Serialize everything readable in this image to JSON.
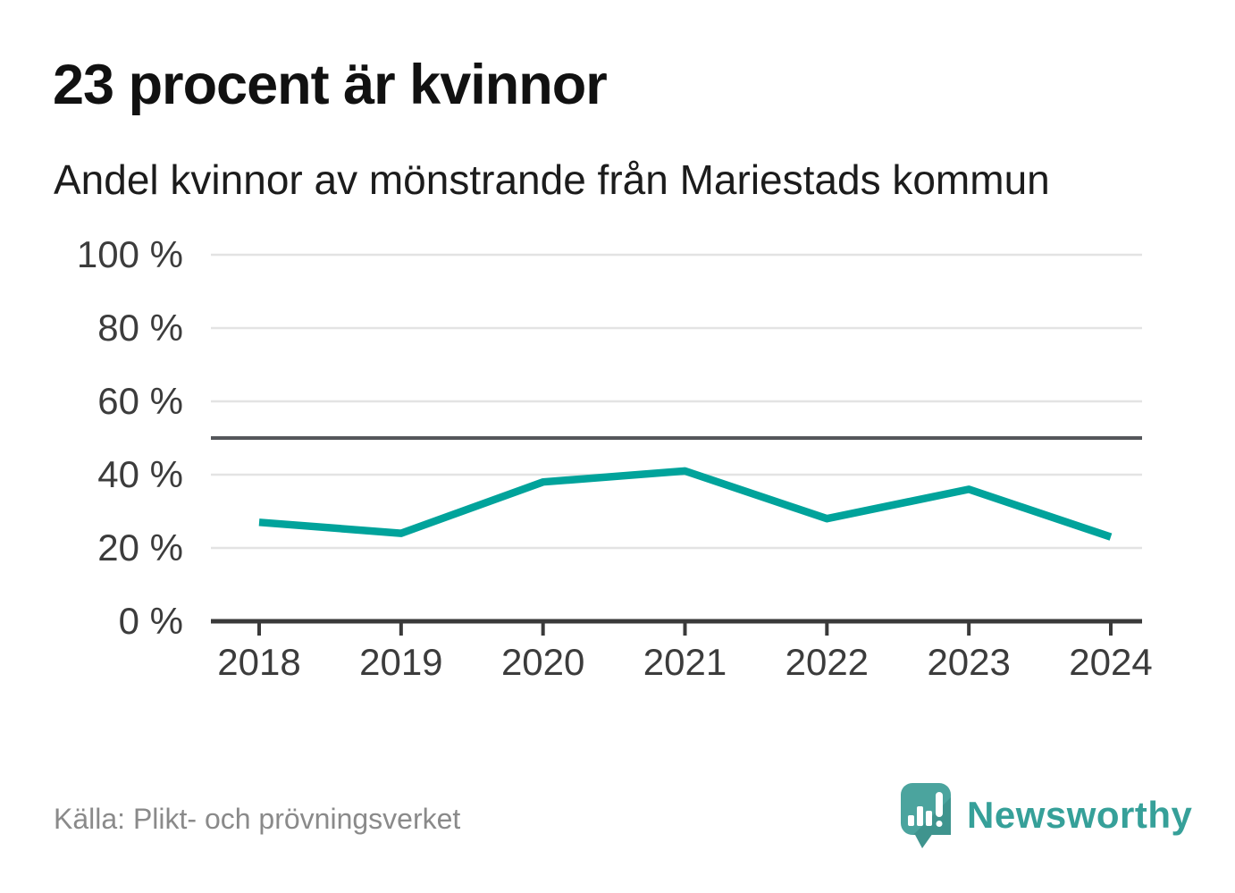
{
  "header": {
    "title": "23 procent är kvinnor",
    "subtitle": "Andel kvinnor av mönstrande från Mariestads kommun"
  },
  "chart_data": {
    "type": "line",
    "title": "23 procent är kvinnor",
    "subtitle": "Andel kvinnor av mönstrande från Mariestads kommun",
    "categories": [
      "2018",
      "2019",
      "2020",
      "2021",
      "2022",
      "2023",
      "2024"
    ],
    "series": [
      {
        "name": "Andel kvinnor av mönstrande",
        "values": [
          27,
          24,
          38,
          41,
          28,
          36,
          23
        ]
      }
    ],
    "xlabel": "",
    "ylabel": "",
    "ylim": [
      0,
      100
    ],
    "yticks": [
      0,
      20,
      40,
      60,
      80,
      100
    ],
    "ytick_labels": [
      "0 %",
      "20 %",
      "40 %",
      "60 %",
      "80 %",
      "100 %"
    ],
    "reference_line": 50,
    "grid": "horizontal",
    "legend_position": "none",
    "line_color": "#00a39b",
    "reference_line_color": "#55575b",
    "axis_color": "#3a3a3a",
    "gridline_color": "#e3e3e3"
  },
  "footer": {
    "source": "Källa: Plikt- och prövningsverket",
    "brand_name": "Newsworthy",
    "brand_color": "#36a099",
    "logo_bubble_color": "#4ba49e",
    "logo_shade_color": "#3f948e"
  }
}
